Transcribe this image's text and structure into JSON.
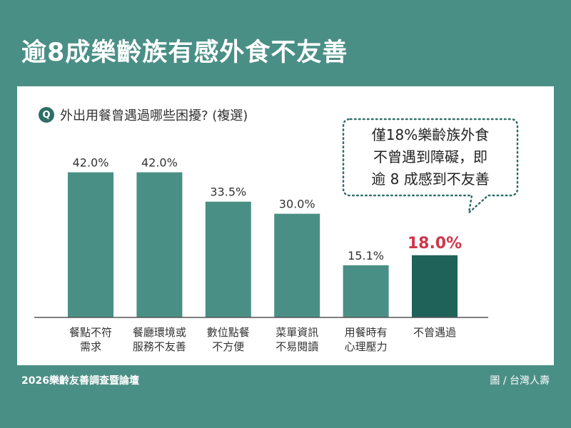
{
  "header": {
    "title": "逾8成樂齡族有感外食不友善"
  },
  "question": {
    "badge": "Q",
    "text": "外出用餐曾遇過哪些困擾? (複選)"
  },
  "callout": {
    "lines": [
      "僅18%樂齡族外食",
      "不曾遇到障礙，即",
      "逾 8 成感到不友善"
    ]
  },
  "chart_data": {
    "type": "bar",
    "title": "",
    "xlabel": "",
    "ylabel": "",
    "ylim": [
      0,
      45
    ],
    "categories": [
      [
        "餐點不符",
        "需求"
      ],
      [
        "餐廳環境或",
        "服務不友善"
      ],
      [
        "數位點餐",
        "不方便"
      ],
      [
        "菜單資訊",
        "不易閱讀"
      ],
      [
        "用餐時有",
        "心理壓力"
      ],
      [
        "不曾遇過"
      ]
    ],
    "values": [
      42.0,
      42.0,
      33.5,
      30.0,
      15.1,
      18.0
    ],
    "data_labels": [
      "42.0%",
      "42.0%",
      "33.5%",
      "30.0%",
      "15.1%",
      "18.0%"
    ],
    "highlight_index": 5,
    "colors": {
      "bar": "#4a8f85",
      "highlight_bar": "#1f6259",
      "highlight_label": "#d0364b",
      "axis": "#555555"
    }
  },
  "footer": {
    "left": "2026樂齡友善調查暨論壇",
    "right": "圖 / 台灣人壽"
  }
}
